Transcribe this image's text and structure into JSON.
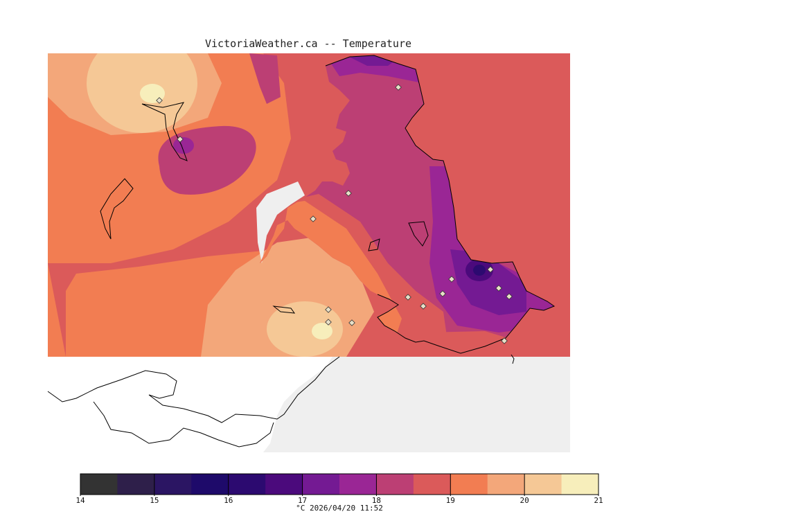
{
  "title": "VictoriaWeather.ca -- Temperature",
  "footer": "°C  2026/04/20 11:52",
  "colorbar": {
    "min": 14,
    "max": 21,
    "step": 0.5,
    "ticks": [
      "14",
      "15",
      "16",
      "17",
      "18",
      "19",
      "20",
      "21"
    ],
    "colors": [
      "#333333",
      "#2e1f4a",
      "#2b1563",
      "#1e0a6a",
      "#2c0a70",
      "#4b0a7c",
      "#741a93",
      "#9a2695",
      "#bc3f74",
      "#db5a5a",
      "#f27d52",
      "#f3a77a",
      "#f5c896",
      "#f7eebb"
    ]
  },
  "map": {
    "ocean_color": "#eeeeee",
    "land_color": "#ffffff",
    "hotspots": [
      {
        "name": "north-warm-center",
        "temp": 20.6
      },
      {
        "name": "south-warm-center",
        "temp": 20.6
      },
      {
        "name": "east-cool-center",
        "temp": 16.2
      }
    ]
  }
}
